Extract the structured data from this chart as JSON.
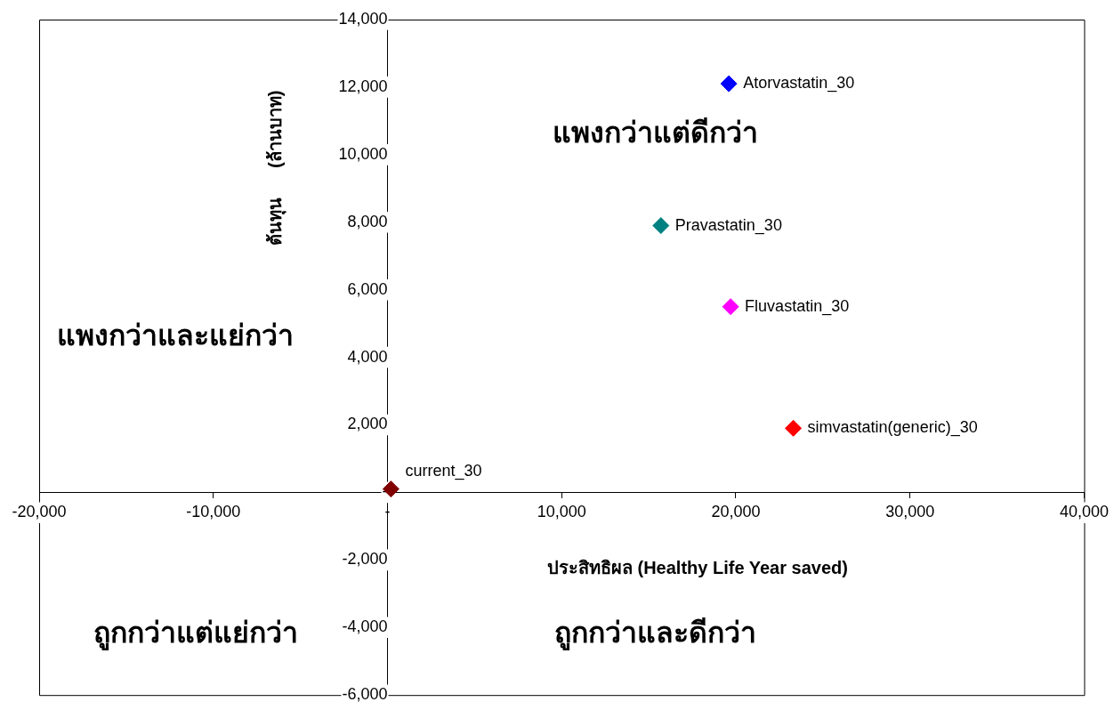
{
  "chart_data": {
    "type": "scatter",
    "xlabel": "ประสิทธิผล (Healthy Life Year saved)",
    "ylabel": "ต้นทุน      (ล้านบาท)",
    "annotations": [
      "แพงกว่าแต่ดีกว่า",
      "แพงกว่าและแย่กว่า",
      "ถูกกว่าแต่แย่กว่า",
      "ถูกกว่าและดีกว่า"
    ],
    "series": [
      {
        "name": "Atorvastatin_30",
        "color": "#0000ff",
        "x": [
          19600
        ],
        "values": [
          12100
        ]
      },
      {
        "name": "Pravastatin_30",
        "color": "#008080",
        "x": [
          15700
        ],
        "values": [
          7900
        ]
      },
      {
        "name": "Fluvastatin_30",
        "color": "#ff00ff",
        "x": [
          19700
        ],
        "values": [
          5500
        ]
      },
      {
        "name": "simvastatin(generic)_30",
        "color": "#ff0000",
        "x": [
          23300
        ],
        "values": [
          1900
        ]
      },
      {
        "name": "current_30",
        "color": "#800000",
        "x": [
          200
        ],
        "values": [
          100
        ]
      }
    ],
    "xlim": [
      -20000,
      40000
    ],
    "xticks": [
      {
        "value": -20000,
        "label": "-20,000"
      },
      {
        "value": -10000,
        "label": "-10,000"
      },
      {
        "value": 0,
        "label": "-"
      },
      {
        "value": 10000,
        "label": "10,000"
      },
      {
        "value": 20000,
        "label": "20,000"
      },
      {
        "value": 30000,
        "label": "30,000"
      },
      {
        "value": 40000,
        "label": "40,000"
      }
    ],
    "ylim": [
      -6000,
      14000
    ],
    "yticks": [
      {
        "value": -6000,
        "label": "-6,000"
      },
      {
        "value": -4000,
        "label": "-4,000"
      },
      {
        "value": -2000,
        "label": "-2,000"
      },
      {
        "value": 0,
        "label": "-"
      },
      {
        "value": 2000,
        "label": "2,000"
      },
      {
        "value": 4000,
        "label": "4,000"
      },
      {
        "value": 6000,
        "label": "6,000"
      },
      {
        "value": 8000,
        "label": "8,000"
      },
      {
        "value": 10000,
        "label": "10,000"
      },
      {
        "value": 12000,
        "label": "12,000"
      },
      {
        "value": 14000,
        "label": "14,000"
      }
    ],
    "marker": "diamond",
    "grid": false,
    "legend": false
  }
}
